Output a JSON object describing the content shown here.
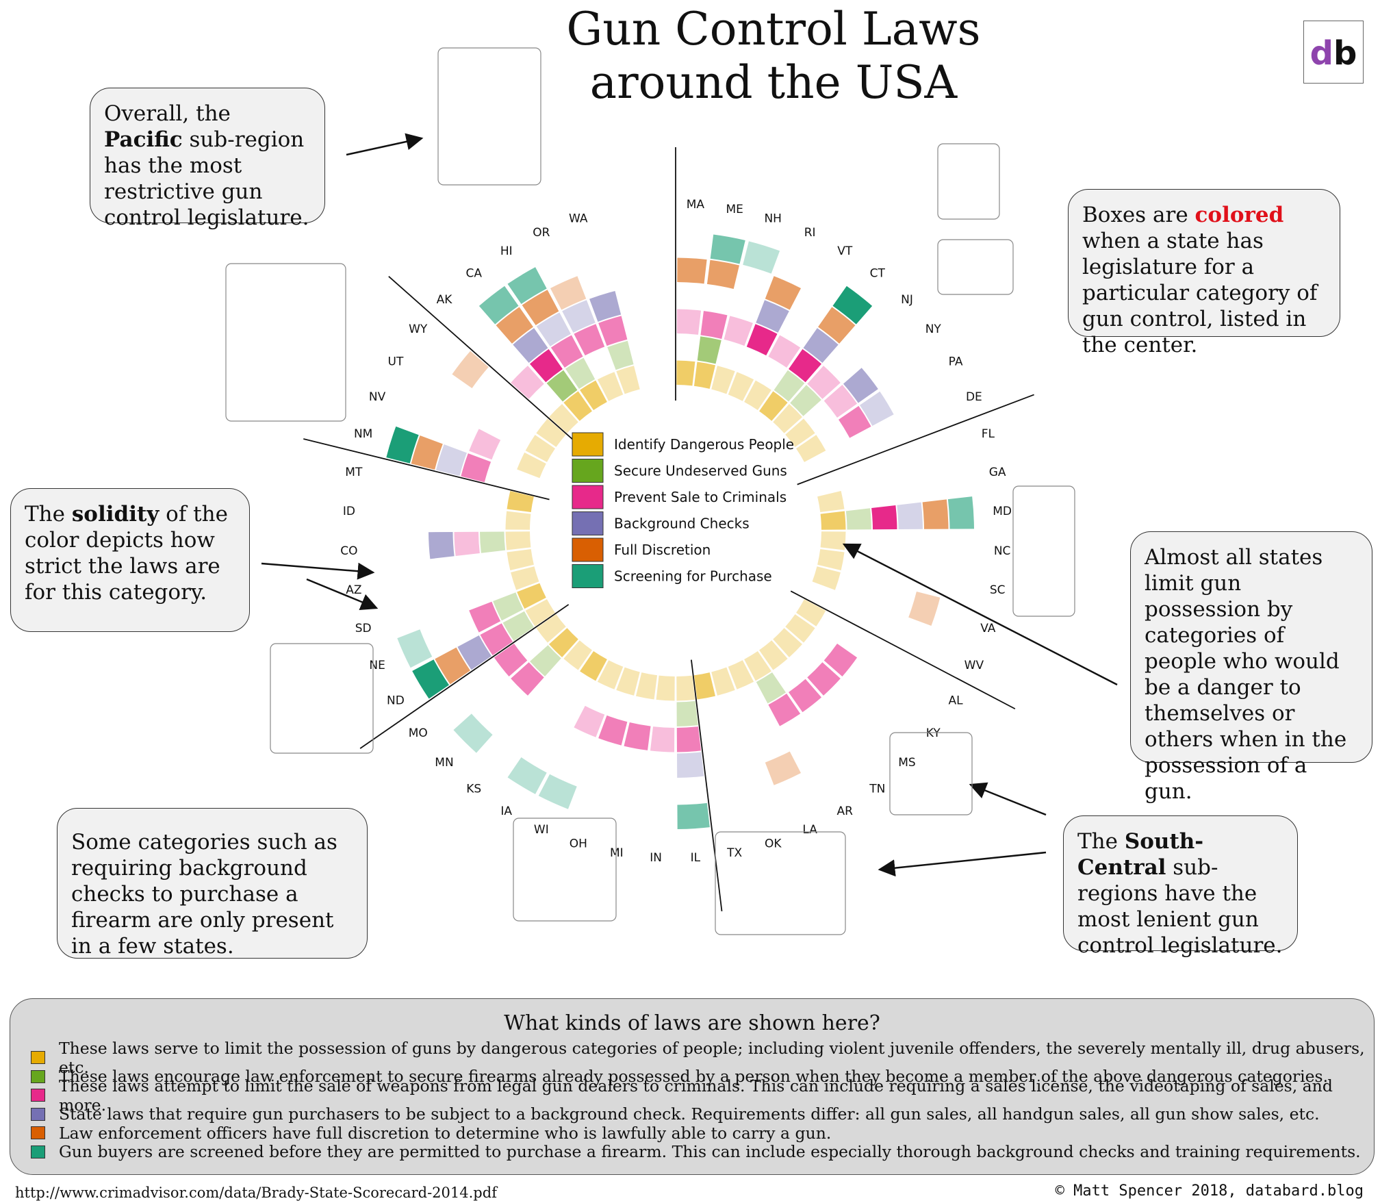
{
  "title": {
    "line1": "Gun Control Laws",
    "line2": "around the USA"
  },
  "logo": {
    "text": "db"
  },
  "callouts": {
    "pacific": {
      "pre": "Overall, the ",
      "bold": "Pacific",
      "post": " sub-region has the most restrictive gun control legislature."
    },
    "colored": {
      "pre": "Boxes are ",
      "red": "colored",
      "post": " when a state has legislature for a particular category of gun control, listed in the center."
    },
    "solidity": {
      "pre": "The ",
      "bold": "solidity",
      "post": " of the color depicts how strict the laws are for this category."
    },
    "almost": {
      "text": "Almost all states limit gun possession by categories of people who would be a danger to themselves or others when in the possession of a gun."
    },
    "background": {
      "text": "Some categories such as requiring background checks to purchase a firearm are only present in a few states."
    },
    "south": {
      "pre": "The ",
      "bold": "South-Central",
      "post": " sub-regions have the most lenient gun control legislature."
    }
  },
  "footer": {
    "title": "What kinds of laws are shown here?",
    "items": [
      {
        "color": "#e6ab02",
        "text": "These laws serve to limit the possession of guns by dangerous categories of people; including violent juvenile offenders, the severely mentally ill, drug abusers, etc."
      },
      {
        "color": "#66a61e",
        "text": "These laws encourage law enforcement to secure firearms already possessed by a person when they become a member of the above dangerous categories."
      },
      {
        "color": "#e7298a",
        "text": "These laws attempt to limit the sale of weapons from legal gun dealers to criminals. This can include requiring a sales license, the videotaping of sales, and more."
      },
      {
        "color": "#7570b3",
        "text": "State laws that require gun purchasers to be subject to a background check. Requirements differ: all gun sales, all handgun sales, all gun show sales, etc."
      },
      {
        "color": "#d95f02",
        "text": "Law enforcement officers have full discretion to determine who is lawfully able to carry a gun."
      },
      {
        "color": "#1b9e77",
        "text": "Gun buyers are screened before they are permitted to purchase a firearm. This can include especially thorough background checks and training requirements."
      }
    ]
  },
  "source": "http://www.crimadvisor.com/data/Brady-State-Scorecard-2014.pdf",
  "credit": "© Matt Spencer 2018, databard.blog",
  "chart_data": {
    "type": "radial-stacked",
    "categories": [
      "Identify Dangerous People",
      "Secure Undeserved Guns",
      "Prevent Sale to Criminals",
      "Background Checks",
      "Full Discretion",
      "Screening for Purchase"
    ],
    "colors": [
      "#e6ab02",
      "#66a61e",
      "#e7298a",
      "#7570b3",
      "#d95f02",
      "#1b9e77"
    ],
    "value_note": "0 = no law, 1 = weakest, 3 = strongest",
    "states": [
      "MA",
      "ME",
      "NH",
      "RI",
      "VT",
      "CT",
      "NJ",
      "NY",
      "PA",
      "DE",
      "FL",
      "GA",
      "MD",
      "NC",
      "SC",
      "VA",
      "WV",
      "AL",
      "KY",
      "MS",
      "TN",
      "AR",
      "LA",
      "OK",
      "TX",
      "IL",
      "IN",
      "MI",
      "OH",
      "WI",
      "IA",
      "KS",
      "MN",
      "MO",
      "ND",
      "NE",
      "SD",
      "AZ",
      "CO",
      "ID",
      "MT",
      "NM",
      "NV",
      "UT",
      "WY",
      "AK",
      "CA",
      "HI",
      "OR",
      "WA"
    ],
    "values": [
      [
        2,
        0,
        1,
        0,
        2,
        0
      ],
      [
        2,
        2,
        2,
        0,
        2,
        2
      ],
      [
        1,
        0,
        1,
        0,
        0,
        1
      ],
      [
        1,
        0,
        3,
        2,
        2,
        0
      ],
      [
        1,
        0,
        1,
        0,
        0,
        0
      ],
      [
        2,
        1,
        3,
        2,
        2,
        3
      ],
      [
        1,
        1,
        1,
        0,
        0,
        0
      ],
      [
        1,
        0,
        1,
        2,
        0,
        0
      ],
      [
        1,
        0,
        2,
        1,
        0,
        0
      ],
      [
        0,
        0,
        0,
        0,
        0,
        0
      ],
      [
        0,
        0,
        0,
        0,
        0,
        0
      ],
      [
        1,
        0,
        0,
        0,
        0,
        0
      ],
      [
        2,
        1,
        3,
        1,
        2,
        2
      ],
      [
        1,
        0,
        0,
        0,
        0,
        0
      ],
      [
        1,
        0,
        0,
        0,
        0,
        0
      ],
      [
        1,
        0,
        0,
        0,
        1,
        0
      ],
      [
        0,
        0,
        0,
        0,
        0,
        0
      ],
      [
        1,
        0,
        0,
        0,
        0,
        0
      ],
      [
        1,
        0,
        2,
        0,
        0,
        0
      ],
      [
        1,
        0,
        2,
        0,
        0,
        0
      ],
      [
        1,
        0,
        2,
        0,
        0,
        0
      ],
      [
        1,
        1,
        2,
        0,
        0,
        0
      ],
      [
        1,
        0,
        0,
        0,
        1,
        0
      ],
      [
        1,
        0,
        0,
        0,
        0,
        0
      ],
      [
        2,
        0,
        0,
        0,
        0,
        0
      ],
      [
        1,
        1,
        2,
        1,
        0,
        2
      ],
      [
        1,
        0,
        1,
        0,
        0,
        0
      ],
      [
        1,
        0,
        2,
        0,
        0,
        0
      ],
      [
        1,
        0,
        2,
        0,
        0,
        0
      ],
      [
        1,
        0,
        1,
        0,
        0,
        1
      ],
      [
        2,
        0,
        0,
        0,
        0,
        1
      ],
      [
        1,
        0,
        0,
        0,
        0,
        0
      ],
      [
        2,
        1,
        2,
        0,
        0,
        1
      ],
      [
        1,
        0,
        2,
        0,
        0,
        0
      ],
      [
        1,
        1,
        2,
        2,
        2,
        3
      ],
      [
        2,
        1,
        2,
        0,
        0,
        1
      ],
      [
        1,
        0,
        0,
        0,
        0,
        0
      ],
      [
        1,
        0,
        0,
        0,
        0,
        0
      ],
      [
        1,
        1,
        1,
        2,
        0,
        0
      ],
      [
        1,
        0,
        0,
        0,
        0,
        0
      ],
      [
        2,
        0,
        0,
        0,
        0,
        0
      ],
      [
        0,
        0,
        2,
        1,
        2,
        3
      ],
      [
        1,
        0,
        1,
        0,
        0,
        0
      ],
      [
        1,
        0,
        0,
        0,
        0,
        0
      ],
      [
        1,
        0,
        0,
        0,
        1,
        0
      ],
      [
        1,
        0,
        1,
        0,
        0,
        0
      ],
      [
        2,
        2,
        3,
        2,
        2,
        2
      ],
      [
        2,
        1,
        2,
        1,
        2,
        2
      ],
      [
        1,
        0,
        2,
        1,
        1,
        0
      ],
      [
        1,
        1,
        2,
        2,
        0,
        0
      ]
    ]
  }
}
